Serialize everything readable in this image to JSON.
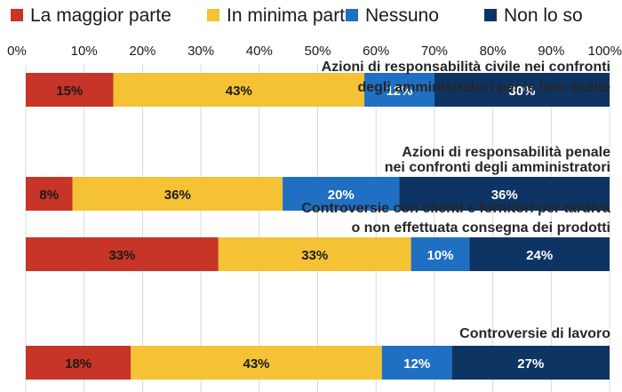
{
  "chart_data": {
    "type": "bar",
    "orientation": "horizontal",
    "stacked": true,
    "percent_stacked": true,
    "legend_position": "top",
    "xlim": [
      0,
      100
    ],
    "x_ticks": [
      "0%",
      "10%",
      "20%",
      "30%",
      "40%",
      "50%",
      "60%",
      "70%",
      "80%",
      "90%",
      "100%"
    ],
    "grid": true,
    "categories": [
      [
        "Azioni di responsabilità civile nei confronti",
        "degli amministratori per le loro scelte"
      ],
      [
        "Azioni di responsabilità penale",
        "nei confronti degli amministratori"
      ],
      [
        "Controversie con clienti e fornitori per tardiva",
        "o non effettuata consegna dei prodotti"
      ],
      [
        "Controversie di lavoro"
      ]
    ],
    "series": [
      {
        "name": "La maggior parte",
        "color": "#c63527",
        "label_color": "#1a1a1a",
        "values": [
          15,
          8,
          33,
          18
        ]
      },
      {
        "name": "In minima parte",
        "color": "#f6c235",
        "label_color": "#1a1a1a",
        "values": [
          43,
          36,
          33,
          43
        ]
      },
      {
        "name": "Nessuno",
        "color": "#1f6fc2",
        "label_color": "#ffffff",
        "values": [
          12,
          20,
          10,
          12
        ]
      },
      {
        "name": "Non lo so",
        "color": "#0e3463",
        "label_color": "#ffffff",
        "values": [
          30,
          36,
          24,
          27
        ]
      }
    ]
  }
}
